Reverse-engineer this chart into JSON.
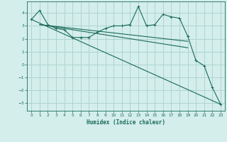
{
  "xlabel": "Humidex (Indice chaleur)",
  "bg_color": "#d4eeeb",
  "grid_color": "#aed4d0",
  "line_color": "#1a6b5a",
  "xlim": [
    -0.5,
    23.5
  ],
  "ylim": [
    -3.6,
    4.9
  ],
  "xticks": [
    0,
    1,
    2,
    3,
    4,
    5,
    6,
    7,
    8,
    9,
    10,
    11,
    12,
    13,
    14,
    15,
    16,
    17,
    18,
    19,
    20,
    21,
    22,
    23
  ],
  "yticks": [
    -3,
    -2,
    -1,
    0,
    1,
    2,
    3,
    4
  ],
  "line1_x": [
    0,
    1,
    2,
    3,
    4,
    5,
    6,
    7,
    8,
    9,
    10,
    11,
    12,
    13,
    14,
    15,
    16,
    17,
    18,
    19,
    20,
    21,
    22,
    23
  ],
  "line1_y": [
    3.5,
    4.2,
    3.1,
    2.8,
    2.7,
    2.1,
    2.1,
    2.1,
    2.5,
    2.8,
    3.0,
    3.0,
    3.1,
    4.5,
    3.0,
    3.1,
    3.9,
    3.7,
    3.6,
    2.2,
    0.3,
    -0.1,
    -1.8,
    -3.1
  ],
  "line2_x": [
    0,
    23
  ],
  "line2_y": [
    3.5,
    -3.1
  ],
  "line3_x": [
    1,
    19
  ],
  "line3_y": [
    3.1,
    1.3
  ],
  "line4_x": [
    1,
    19
  ],
  "line4_y": [
    3.1,
    1.8
  ]
}
